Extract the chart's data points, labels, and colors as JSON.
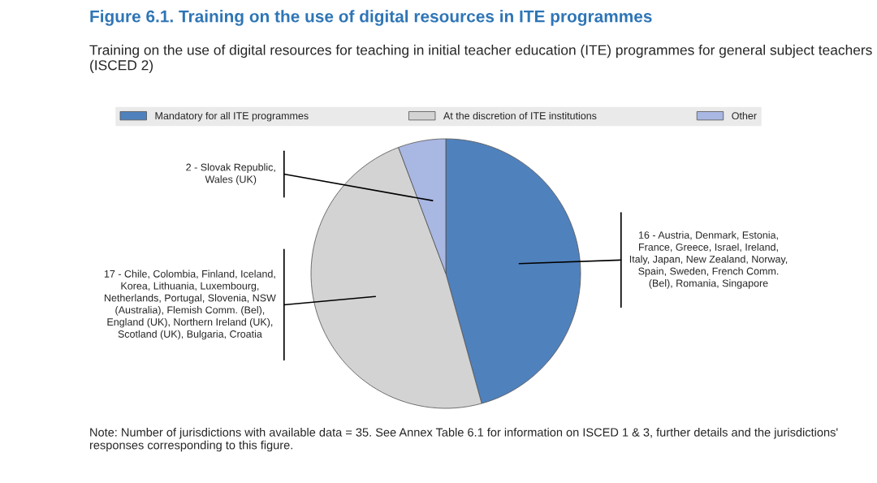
{
  "chart_data": {
    "type": "pie",
    "title": "Figure 6.1. Training on the use of digital resources in ITE programmes",
    "subtitle": "Training on the use of digital resources for teaching in initial teacher education (ITE) programmes for general subject teachers (ISCED 2)",
    "categories": [
      "Mandatory for all ITE programmes",
      "At the discretion of ITE institutions",
      "Other"
    ],
    "values": [
      16,
      17,
      2
    ],
    "colors": [
      "#4f81bd",
      "#d3d3d3",
      "#a9b7e3"
    ],
    "value_labels": [
      "16 - Austria, Denmark, Estonia,\nFrance, Greece, Israel, Ireland,\nItaly, Japan, New Zealand, Norway,\nSpain, Sweden, French Comm.\n(Bel), Romania, Singapore",
      "17 - Chile, Colombia, Finland, Iceland,\nKorea, Lithuania, Luxembourg,\nNetherlands, Portugal, Slovenia, NSW\n(Australia), Flemish Comm. (Bel),\nEngland (UK), Northern Ireland (UK),\nScotland (UK), Bulgaria, Croatia",
      "2 - Slovak Republic,\nWales (UK)"
    ],
    "legend": "top",
    "annotations": [
      "Note: Number of jurisdictions with available data = 35. See Annex Table 6.1 for information on ISCED 1 & 3, further details and the jurisdictions' responses corresponding to this figure."
    ]
  }
}
